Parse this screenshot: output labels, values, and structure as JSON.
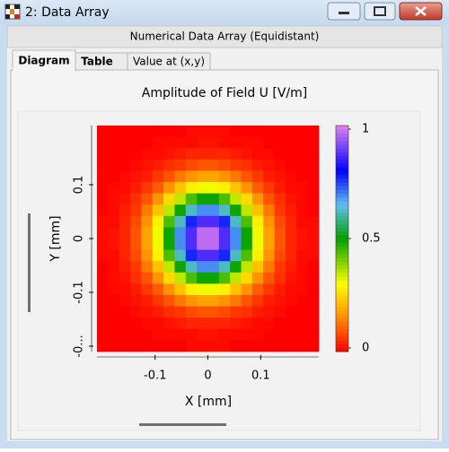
{
  "window": {
    "title": "2: Data Array",
    "subtitle": "Numerical Data Array (Equidistant)",
    "tabs": [
      "Diagram",
      "Table",
      "Value at (x,y)"
    ]
  },
  "chart_data": {
    "type": "heatmap",
    "title": "Amplitude of Field U  [V/m]",
    "xlabel": "X [mm]",
    "ylabel": "Y [mm]",
    "xlim": [
      -0.21,
      0.21
    ],
    "ylim": [
      -0.21,
      0.21
    ],
    "xticks": [
      -0.1,
      0,
      0.1
    ],
    "yticks": [
      {
        "value": -0.2,
        "label": "-0..."
      },
      -0.1,
      0,
      0.1
    ],
    "zlim": [
      0,
      1
    ],
    "zticks": [
      0,
      0.5,
      1
    ],
    "colorscale": [
      [
        0,
        "#ff0000"
      ],
      [
        0.15,
        "#ff8c00"
      ],
      [
        0.3,
        "#ffff00"
      ],
      [
        0.5,
        "#00a000"
      ],
      [
        0.65,
        "#60c0f0"
      ],
      [
        0.8,
        "#0000ff"
      ],
      [
        1,
        "#e080f0"
      ]
    ],
    "z": [
      [
        0,
        0,
        0,
        0,
        0,
        0,
        0,
        0,
        0.01,
        0.01,
        0.01,
        0.01,
        0,
        0,
        0,
        0,
        0,
        0,
        0,
        0
      ],
      [
        0,
        0,
        0,
        0,
        0,
        0.01,
        0.01,
        0.01,
        0.01,
        0.02,
        0.02,
        0.01,
        0.01,
        0.01,
        0.01,
        0,
        0,
        0,
        0,
        0
      ],
      [
        0,
        0,
        0,
        0,
        0.01,
        0.01,
        0.02,
        0.03,
        0.04,
        0.04,
        0.04,
        0.04,
        0.03,
        0.02,
        0.01,
        0.01,
        0,
        0,
        0,
        0
      ],
      [
        0,
        0,
        0,
        0.01,
        0.02,
        0.03,
        0.05,
        0.06,
        0.08,
        0.09,
        0.09,
        0.08,
        0.06,
        0.05,
        0.03,
        0.02,
        0.01,
        0,
        0,
        0
      ],
      [
        0,
        0,
        0.01,
        0.02,
        0.03,
        0.06,
        0.09,
        0.13,
        0.16,
        0.18,
        0.18,
        0.16,
        0.13,
        0.09,
        0.06,
        0.03,
        0.02,
        0.01,
        0,
        0
      ],
      [
        0,
        0.01,
        0.01,
        0.03,
        0.06,
        0.1,
        0.16,
        0.22,
        0.28,
        0.31,
        0.31,
        0.28,
        0.22,
        0.16,
        0.1,
        0.06,
        0.03,
        0.01,
        0.01,
        0
      ],
      [
        0,
        0.01,
        0.02,
        0.05,
        0.09,
        0.16,
        0.25,
        0.35,
        0.44,
        0.49,
        0.49,
        0.44,
        0.35,
        0.25,
        0.16,
        0.09,
        0.05,
        0.02,
        0.01,
        0
      ],
      [
        0,
        0.01,
        0.03,
        0.06,
        0.13,
        0.22,
        0.35,
        0.49,
        0.62,
        0.69,
        0.69,
        0.62,
        0.49,
        0.35,
        0.22,
        0.13,
        0.06,
        0.03,
        0.01,
        0
      ],
      [
        0.01,
        0.01,
        0.04,
        0.08,
        0.16,
        0.28,
        0.44,
        0.62,
        0.77,
        0.87,
        0.87,
        0.77,
        0.62,
        0.44,
        0.28,
        0.16,
        0.08,
        0.04,
        0.01,
        0.01
      ],
      [
        0.01,
        0.02,
        0.04,
        0.09,
        0.18,
        0.31,
        0.49,
        0.69,
        0.87,
        0.97,
        0.97,
        0.87,
        0.69,
        0.49,
        0.31,
        0.18,
        0.09,
        0.04,
        0.02,
        0.01
      ],
      [
        0.01,
        0.02,
        0.04,
        0.09,
        0.18,
        0.31,
        0.49,
        0.69,
        0.87,
        0.97,
        0.97,
        0.87,
        0.69,
        0.49,
        0.31,
        0.18,
        0.09,
        0.04,
        0.02,
        0.01
      ],
      [
        0.01,
        0.01,
        0.04,
        0.08,
        0.16,
        0.28,
        0.44,
        0.62,
        0.77,
        0.87,
        0.87,
        0.77,
        0.62,
        0.44,
        0.28,
        0.16,
        0.08,
        0.04,
        0.01,
        0.01
      ],
      [
        0,
        0.01,
        0.03,
        0.06,
        0.13,
        0.22,
        0.35,
        0.49,
        0.62,
        0.69,
        0.69,
        0.62,
        0.49,
        0.35,
        0.22,
        0.13,
        0.06,
        0.03,
        0.01,
        0
      ],
      [
        0,
        0.01,
        0.02,
        0.05,
        0.09,
        0.16,
        0.25,
        0.35,
        0.44,
        0.49,
        0.49,
        0.44,
        0.35,
        0.25,
        0.16,
        0.09,
        0.05,
        0.02,
        0.01,
        0
      ],
      [
        0,
        0.01,
        0.01,
        0.03,
        0.06,
        0.1,
        0.16,
        0.22,
        0.28,
        0.31,
        0.31,
        0.28,
        0.22,
        0.16,
        0.1,
        0.06,
        0.03,
        0.01,
        0.01,
        0
      ],
      [
        0,
        0,
        0.01,
        0.02,
        0.03,
        0.06,
        0.09,
        0.13,
        0.16,
        0.18,
        0.18,
        0.16,
        0.13,
        0.09,
        0.06,
        0.03,
        0.02,
        0.01,
        0,
        0
      ],
      [
        0,
        0,
        0,
        0.01,
        0.02,
        0.03,
        0.05,
        0.06,
        0.08,
        0.09,
        0.09,
        0.08,
        0.06,
        0.05,
        0.03,
        0.02,
        0.01,
        0,
        0,
        0
      ],
      [
        0,
        0,
        0,
        0,
        0.01,
        0.01,
        0.02,
        0.03,
        0.04,
        0.04,
        0.04,
        0.04,
        0.03,
        0.02,
        0.01,
        0.01,
        0,
        0,
        0,
        0
      ],
      [
        0,
        0,
        0,
        0,
        0,
        0.01,
        0.01,
        0.01,
        0.01,
        0.02,
        0.02,
        0.01,
        0.01,
        0.01,
        0.01,
        0,
        0,
        0,
        0,
        0
      ],
      [
        0,
        0,
        0,
        0,
        0,
        0,
        0,
        0,
        0.01,
        0.01,
        0.01,
        0.01,
        0,
        0,
        0,
        0,
        0,
        0,
        0,
        0
      ]
    ]
  }
}
